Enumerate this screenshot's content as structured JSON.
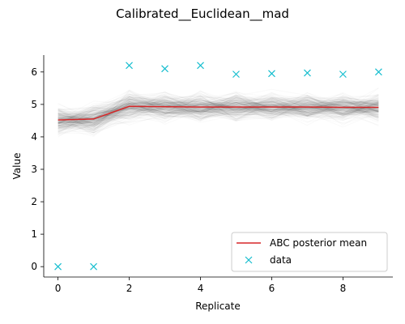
{
  "chart_data": {
    "type": "line",
    "title": "Calibrated__Euclidean__mad",
    "xlabel": "Replicate",
    "ylabel": "Value",
    "xlim": [
      -0.4,
      9.4
    ],
    "ylim": [
      -0.32,
      6.52
    ],
    "x_ticks": [
      0,
      2,
      4,
      6,
      8
    ],
    "y_ticks": [
      0,
      1,
      2,
      3,
      4,
      5,
      6
    ],
    "grid": false,
    "legend_position": "bottom-right",
    "x": [
      0,
      1,
      2,
      3,
      4,
      5,
      6,
      7,
      8,
      9
    ],
    "series": [
      {
        "name": "ABC posterior mean",
        "kind": "line",
        "color": "#d62728",
        "values": [
          4.52,
          4.55,
          4.94,
          4.93,
          4.92,
          4.92,
          4.92,
          4.92,
          4.91,
          4.91
        ]
      },
      {
        "name": "data",
        "kind": "scatter",
        "marker": "x",
        "color": "#17becf",
        "values": [
          0.0,
          0.0,
          6.2,
          6.1,
          6.2,
          5.93,
          5.95,
          5.97,
          5.93,
          6.0
        ]
      }
    ],
    "posterior_band": {
      "color": "#000000",
      "center": [
        4.52,
        4.55,
        4.94,
        4.93,
        4.92,
        4.92,
        4.92,
        4.92,
        4.91,
        4.91
      ],
      "spread": [
        0.5,
        0.55,
        0.5,
        0.45,
        0.45,
        0.45,
        0.45,
        0.45,
        0.45,
        0.45
      ]
    }
  }
}
